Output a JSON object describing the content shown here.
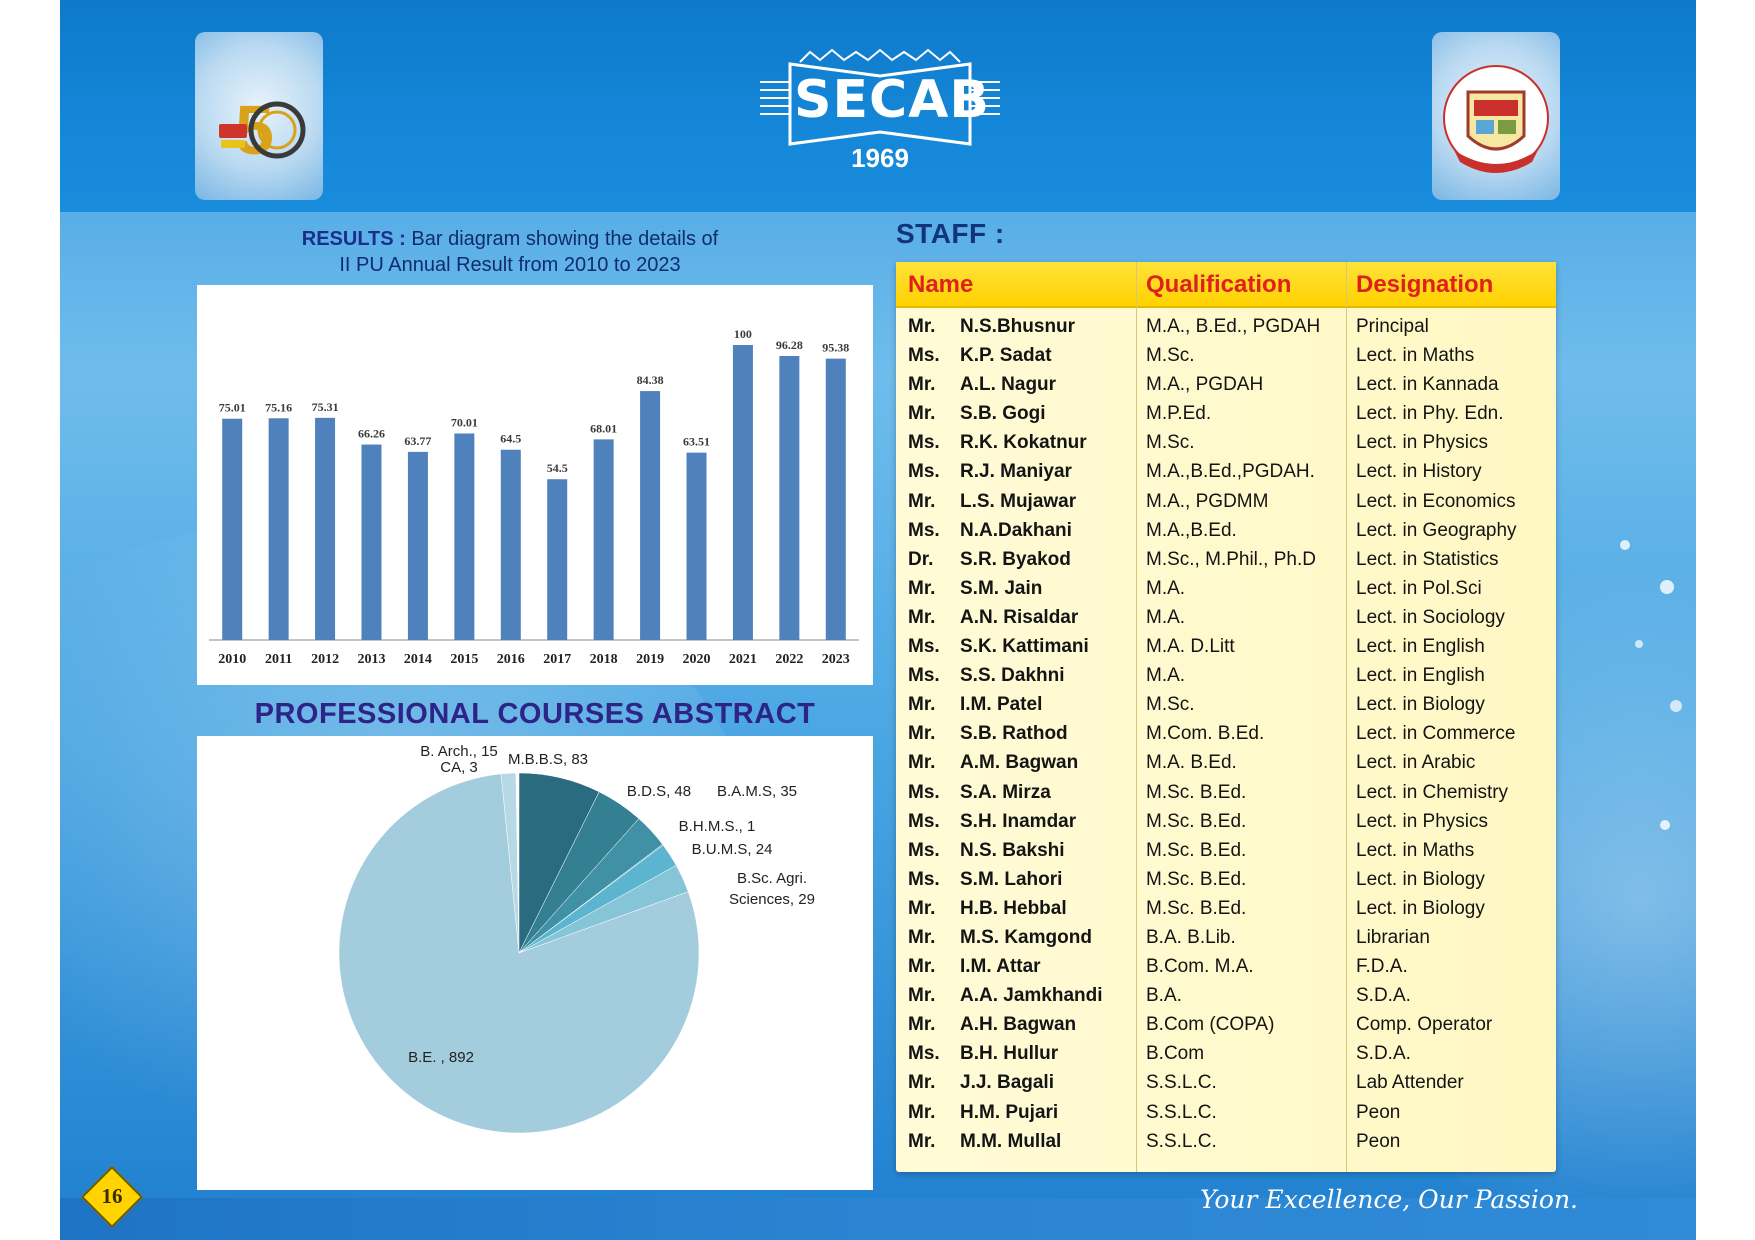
{
  "header": {
    "brand_name": "SECAB",
    "brand_year": "1969"
  },
  "results": {
    "label": "RESULTS :",
    "line1": "Bar diagram showing the details of",
    "line2": "II PU Annual Result from 2010 to 2023"
  },
  "professional_courses": {
    "heading": "PROFESSIONAL COURSES ABSTRACT"
  },
  "chart_data": [
    {
      "type": "bar",
      "categories": [
        "2010",
        "2011",
        "2012",
        "2013",
        "2014",
        "2015",
        "2016",
        "2017",
        "2018",
        "2019",
        "2020",
        "2021",
        "2022",
        "2023"
      ],
      "values": [
        75.01,
        75.16,
        75.31,
        66.26,
        63.77,
        70.01,
        64.5,
        54.5,
        68.01,
        84.38,
        63.51,
        100,
        96.28,
        95.38
      ],
      "value_labels": [
        "75.01",
        "75.16",
        "75.31",
        "66.26",
        "63.77",
        "70.01",
        "64.5",
        "54.5",
        "68.01",
        "84.38",
        "63.51",
        "100",
        "96.28",
        "95.38"
      ],
      "ylim": [
        0,
        100
      ],
      "color": "#4f81bd",
      "grid": false
    },
    {
      "type": "pie",
      "slices": [
        {
          "label": "B. Arch., 15",
          "value": 15,
          "color": "#b7d9e6"
        },
        {
          "label": "CA, 3",
          "value": 3,
          "color": "#ffffff"
        },
        {
          "label": "M.B.B.S, 83",
          "value": 83,
          "color": "#2b6b7f"
        },
        {
          "label": "B.D.S, 48",
          "value": 48,
          "color": "#357f93"
        },
        {
          "label": "B.A.M.S, 35",
          "value": 35,
          "color": "#4191a6"
        },
        {
          "label": "B.H.M.S., 1",
          "value": 1,
          "color": "#4fa3b9"
        },
        {
          "label": "B.U.M.S, 24",
          "value": 24,
          "color": "#5bb5ce"
        },
        {
          "label": "B.Sc. Agri. Sciences, 29",
          "value": 29,
          "color": "#86c4d8"
        },
        {
          "label": "B.E. , 892",
          "value": 892,
          "color": "#a3cddc"
        }
      ]
    }
  ],
  "staff": {
    "heading": "STAFF :",
    "columns": [
      "Name",
      "Qualification",
      "Designation"
    ],
    "rows": [
      {
        "title": "Mr.",
        "name": "N.S.Bhusnur",
        "qualification": "M.A., B.Ed., PGDAH",
        "designation": "Principal"
      },
      {
        "title": "Ms.",
        "name": "K.P. Sadat",
        "qualification": "M.Sc.",
        "designation": "Lect. in Maths"
      },
      {
        "title": "Mr.",
        "name": "A.L. Nagur",
        "qualification": "M.A., PGDAH",
        "designation": "Lect. in Kannada"
      },
      {
        "title": "Mr.",
        "name": "S.B. Gogi",
        "qualification": "M.P.Ed.",
        "designation": "Lect. in Phy. Edn."
      },
      {
        "title": "Ms.",
        "name": "R.K. Kokatnur",
        "qualification": "M.Sc.",
        "designation": "Lect. in Physics"
      },
      {
        "title": "Ms.",
        "name": "R.J. Maniyar",
        "qualification": "M.A.,B.Ed.,PGDAH.",
        "designation": "Lect. in History"
      },
      {
        "title": "Mr.",
        "name": "L.S. Mujawar",
        "qualification": "M.A., PGDMM",
        "designation": "Lect. in Economics"
      },
      {
        "title": "Ms.",
        "name": "N.A.Dakhani",
        "qualification": "M.A.,B.Ed.",
        "designation": "Lect. in Geography"
      },
      {
        "title": "Dr.",
        "name": "S.R. Byakod",
        "qualification": "M.Sc., M.Phil., Ph.D",
        "designation": "Lect. in Statistics"
      },
      {
        "title": "Mr.",
        "name": "S.M. Jain",
        "qualification": "M.A.",
        "designation": "Lect. in Pol.Sci"
      },
      {
        "title": "Mr.",
        "name": "A.N. Risaldar",
        "qualification": "M.A.",
        "designation": "Lect. in Sociology"
      },
      {
        "title": "Ms.",
        "name": "S.K. Kattimani",
        "qualification": "M.A. D.Litt",
        "designation": "Lect. in English"
      },
      {
        "title": "Ms.",
        "name": "S.S. Dakhni",
        "qualification": "M.A.",
        "designation": "Lect. in English"
      },
      {
        "title": "Mr.",
        "name": "I.M. Patel",
        "qualification": "M.Sc.",
        "designation": "Lect. in Biology"
      },
      {
        "title": "Mr.",
        "name": "S.B. Rathod",
        "qualification": "M.Com. B.Ed.",
        "designation": "Lect. in Commerce"
      },
      {
        "title": "Mr.",
        "name": "A.M. Bagwan",
        "qualification": "M.A. B.Ed.",
        "designation": "Lect. in Arabic"
      },
      {
        "title": "Ms.",
        "name": "S.A. Mirza",
        "qualification": "M.Sc. B.Ed.",
        "designation": "Lect. in Chemistry"
      },
      {
        "title": "Ms.",
        "name": "S.H. Inamdar",
        "qualification": "M.Sc. B.Ed.",
        "designation": "Lect. in Physics"
      },
      {
        "title": "Ms.",
        "name": "N.S. Bakshi",
        "qualification": "M.Sc. B.Ed.",
        "designation": "Lect. in Maths"
      },
      {
        "title": "Ms.",
        "name": "S.M. Lahori",
        "qualification": "M.Sc. B.Ed.",
        "designation": "Lect. in Biology"
      },
      {
        "title": "Mr.",
        "name": "H.B. Hebbal",
        "qualification": "M.Sc. B.Ed.",
        "designation": "Lect. in Biology"
      },
      {
        "title": "Mr.",
        "name": "M.S. Kamgond",
        "qualification": "B.A. B.Lib.",
        "designation": "Librarian"
      },
      {
        "title": "Mr.",
        "name": "I.M. Attar",
        "qualification": "B.Com. M.A.",
        "designation": "F.D.A."
      },
      {
        "title": "Mr.",
        "name": "A.A. Jamkhandi",
        "qualification": "B.A.",
        "designation": "S.D.A."
      },
      {
        "title": "Mr.",
        "name": "A.H. Bagwan",
        "qualification": "B.Com (COPA)",
        "designation": "Comp. Operator"
      },
      {
        "title": "Ms.",
        "name": "B.H. Hullur",
        "qualification": "B.Com",
        "designation": "S.D.A."
      },
      {
        "title": "Mr.",
        "name": "J.J. Bagali",
        "qualification": "S.S.L.C.",
        "designation": "Lab Attender"
      },
      {
        "title": "Mr.",
        "name": "H.M. Pujari",
        "qualification": "S.S.L.C.",
        "designation": "Peon"
      },
      {
        "title": "Mr.",
        "name": "M.M. Mullal",
        "qualification": "S.S.L.C.",
        "designation": "Peon"
      }
    ]
  },
  "footer": {
    "page_number": "16",
    "tagline": "Your Excellence, Our Passion."
  },
  "colors": {
    "header_blue": "#1587d8",
    "table_header_yellow": "#ffd200",
    "table_header_text": "#e0201b",
    "bar_blue": "#4f81bd"
  }
}
